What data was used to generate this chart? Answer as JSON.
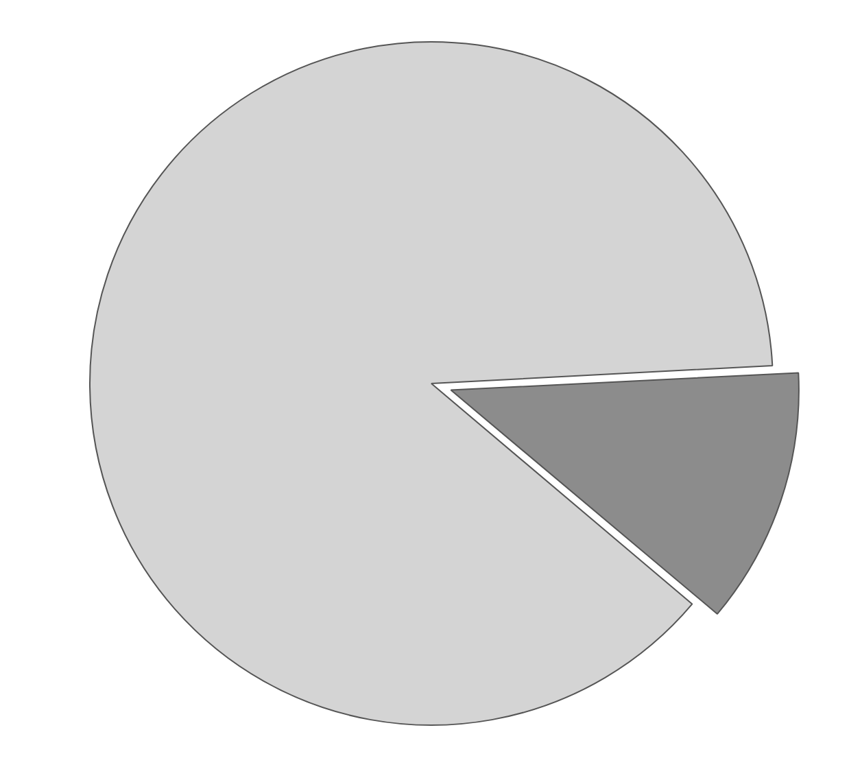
{
  "chart_data": {
    "type": "pie",
    "categories": [
      null,
      null
    ],
    "values": [
      12,
      88
    ],
    "colors": [
      "#8c8c8c",
      "#d4d4d4"
    ],
    "legend": false
  }
}
